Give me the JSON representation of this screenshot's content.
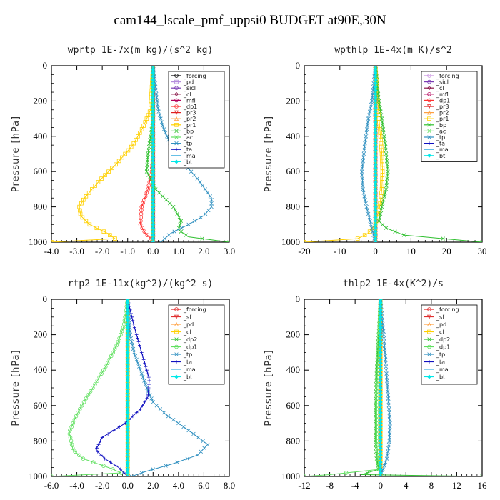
{
  "figure": {
    "title": "cam144_lscale_pmf_uppsi0  BUDGET at90E,30N"
  },
  "chart_data": [
    {
      "type": "line",
      "title": "wprtp  1E-7x(m kg)/(s^2 kg)",
      "ylabel": "Pressure [hPa]",
      "xlim": [
        -4.0,
        3.0
      ],
      "ylim": [
        1000,
        0
      ],
      "xticks": [
        -4.0,
        -3.0,
        -2.0,
        -1.0,
        0.0,
        1.0,
        2.0,
        3.0
      ],
      "xtick_labels": [
        "-4.0",
        "-3.0",
        "-2.0",
        "-1.0",
        "0.0",
        "1.0",
        "2.0",
        "3.0"
      ],
      "yticks": [
        0,
        200,
        400,
        600,
        800,
        1000
      ],
      "legend_position": "top-right",
      "series": [
        {
          "name": "_forcing",
          "color": "#000000",
          "marker": "o",
          "p": [
            0,
            200,
            400,
            600,
            800,
            1000
          ],
          "x": [
            0,
            0,
            0,
            0,
            0,
            0
          ]
        },
        {
          "name": "_pd",
          "color": "#b48cdc",
          "marker": "s",
          "p": [
            0,
            1000
          ],
          "x": [
            0,
            0
          ]
        },
        {
          "name": "_sicl",
          "color": "#7a3cb4",
          "marker": "o",
          "p": [
            0,
            1000
          ],
          "x": [
            0,
            0
          ]
        },
        {
          "name": "_cl",
          "color": "#8b1a4a",
          "marker": "d",
          "p": [
            0,
            1000
          ],
          "x": [
            0,
            0
          ]
        },
        {
          "name": "_mfl",
          "color": "#b4005a",
          "marker": "o",
          "p": [
            0,
            1000
          ],
          "x": [
            0,
            0
          ]
        },
        {
          "name": "_dp1",
          "color": "#ff3030",
          "marker": "o",
          "p": [
            0,
            300,
            500,
            600,
            700,
            800,
            900,
            950,
            990,
            1000
          ],
          "x": [
            0,
            0,
            0,
            -0.05,
            -0.2,
            -0.45,
            -0.5,
            -0.3,
            0.0,
            0
          ]
        },
        {
          "name": "_pr3",
          "color": "#e02020",
          "marker": "v",
          "p": [
            0,
            1000
          ],
          "x": [
            0,
            0
          ]
        },
        {
          "name": "_pr2",
          "color": "#ffa040",
          "marker": "^",
          "p": [
            0,
            1000
          ],
          "x": [
            0,
            0
          ]
        },
        {
          "name": "_pr1",
          "color": "#ffd000",
          "marker": "s",
          "p": [
            0,
            250,
            350,
            450,
            550,
            650,
            750,
            800,
            850,
            900,
            950,
            980,
            1000
          ],
          "x": [
            0,
            -0.1,
            -0.4,
            -0.8,
            -1.4,
            -2.1,
            -2.7,
            -2.9,
            -2.85,
            -2.5,
            -1.8,
            -1.5,
            -4.0
          ]
        },
        {
          "name": "_bp",
          "color": "#30c030",
          "marker": "x",
          "p": [
            0,
            300,
            500,
            600,
            700,
            800,
            880,
            930,
            970,
            1000
          ],
          "x": [
            0,
            0,
            -0.2,
            -0.25,
            0.1,
            0.8,
            1.1,
            1.0,
            1.4,
            3.0
          ]
        },
        {
          "name": "_ac",
          "color": "#60e060",
          "marker": "x",
          "p": [
            0,
            1000
          ],
          "x": [
            0,
            0
          ]
        },
        {
          "name": "_tp",
          "color": "#3090c0",
          "marker": "x",
          "p": [
            0,
            250,
            350,
            450,
            550,
            650,
            750,
            800,
            850,
            900,
            950,
            1000
          ],
          "x": [
            0,
            0.2,
            0.4,
            0.7,
            1.2,
            1.8,
            2.3,
            2.3,
            2.0,
            1.4,
            0.7,
            0.3
          ]
        },
        {
          "name": "_ta",
          "color": "#1010c0",
          "marker": "+",
          "p": [
            0,
            1000
          ],
          "x": [
            0,
            0
          ]
        },
        {
          "name": "_ma",
          "color": "#40b0e0",
          "marker": "-",
          "p": [
            0,
            1000
          ],
          "x": [
            0,
            0
          ]
        },
        {
          "name": "_bt",
          "color": "#00e8e8",
          "marker": "D",
          "p": [
            0,
            1000
          ],
          "x": [
            0,
            0
          ]
        }
      ]
    },
    {
      "type": "line",
      "title": "wpthlp  1E-4x(m K)/s^2",
      "ylabel": "Pressure [hPa]",
      "xlim": [
        -20,
        30
      ],
      "ylim": [
        1000,
        0
      ],
      "xticks": [
        -20,
        -10,
        0,
        10,
        20,
        30
      ],
      "xtick_labels": [
        "-20",
        "-10",
        "0",
        "10",
        "20",
        "30"
      ],
      "yticks": [
        0,
        200,
        400,
        600,
        800,
        1000
      ],
      "legend_position": "top-right",
      "series": [
        {
          "name": "_forcing",
          "color": "#c890e0",
          "marker": "o",
          "p": [
            0,
            1000
          ],
          "x": [
            0,
            0
          ]
        },
        {
          "name": "_sicl",
          "color": "#7a3cb4",
          "marker": "o",
          "p": [
            0,
            1000
          ],
          "x": [
            0,
            0
          ]
        },
        {
          "name": "_cl",
          "color": "#8b1a4a",
          "marker": "d",
          "p": [
            0,
            1000
          ],
          "x": [
            0,
            0
          ]
        },
        {
          "name": "_mfl",
          "color": "#b4005a",
          "marker": "o",
          "p": [
            0,
            1000
          ],
          "x": [
            0,
            0
          ]
        },
        {
          "name": "_dp1",
          "color": "#ff3030",
          "marker": "o",
          "p": [
            0,
            1000
          ],
          "x": [
            0,
            0
          ]
        },
        {
          "name": "_pr3",
          "color": "#e02020",
          "marker": "v",
          "p": [
            0,
            600,
            800,
            900,
            1000
          ],
          "x": [
            0,
            0,
            0,
            0,
            0
          ]
        },
        {
          "name": "_pr2",
          "color": "#ffa040",
          "marker": "^",
          "p": [
            0,
            1000
          ],
          "x": [
            0,
            0
          ]
        },
        {
          "name": "_pr1",
          "color": "#ffd000",
          "marker": "s",
          "p": [
            0,
            300,
            500,
            600,
            700,
            800,
            850,
            900,
            950,
            980,
            1000
          ],
          "x": [
            0,
            1.0,
            1.8,
            2.0,
            1.8,
            1.2,
            0.6,
            0.0,
            -2.0,
            -5.0,
            -20.0
          ]
        },
        {
          "name": "_bp",
          "color": "#30c030",
          "marker": "x",
          "p": [
            0,
            200,
            300,
            450,
            600,
            700,
            800,
            880,
            920,
            960,
            1000
          ],
          "x": [
            0,
            1.0,
            1.8,
            2.8,
            3.5,
            3.0,
            1.8,
            1.0,
            3.0,
            8.0,
            30.0
          ]
        },
        {
          "name": "_ac",
          "color": "#60e060",
          "marker": "x",
          "p": [
            0,
            1000
          ],
          "x": [
            0,
            0
          ]
        },
        {
          "name": "_tp",
          "color": "#3090c0",
          "marker": "x",
          "p": [
            0,
            200,
            300,
            450,
            600,
            700,
            800,
            880,
            940,
            980,
            1000
          ],
          "x": [
            0,
            -1.0,
            -2.0,
            -3.0,
            -3.8,
            -3.5,
            -2.5,
            -1.5,
            -0.8,
            -0.3,
            0
          ]
        },
        {
          "name": "_ta",
          "color": "#1010c0",
          "marker": "+",
          "p": [
            0,
            1000
          ],
          "x": [
            0,
            0
          ]
        },
        {
          "name": "_ma",
          "color": "#40b0e0",
          "marker": "-",
          "p": [
            0,
            1000
          ],
          "x": [
            0,
            0
          ]
        },
        {
          "name": "_bt",
          "color": "#00e8e8",
          "marker": "D",
          "p": [
            0,
            1000
          ],
          "x": [
            0,
            0
          ]
        }
      ]
    },
    {
      "type": "line",
      "title": "rtp2  1E-11x(kg^2)/(kg^2 s)",
      "ylabel": "Pressure [hPa]",
      "xlim": [
        -6.0,
        8.0
      ],
      "ylim": [
        1000,
        0
      ],
      "xticks": [
        -6.0,
        -4.0,
        -2.0,
        0.0,
        2.0,
        4.0,
        6.0,
        8.0
      ],
      "xtick_labels": [
        "-6.0",
        "-4.0",
        "-2.0",
        "0.0",
        "2.0",
        "4.0",
        "6.0",
        "8.0"
      ],
      "yticks": [
        0,
        200,
        400,
        600,
        800,
        1000
      ],
      "legend_position": "top-right",
      "series": [
        {
          "name": "_forcing",
          "color": "#e02020",
          "marker": "o",
          "p": [
            0,
            1000
          ],
          "x": [
            0,
            0
          ]
        },
        {
          "name": "_sf",
          "color": "#e03030",
          "marker": "v",
          "p": [
            0,
            1000
          ],
          "x": [
            0,
            0
          ]
        },
        {
          "name": "_pd",
          "color": "#ffa040",
          "marker": "^",
          "p": [
            0,
            1000
          ],
          "x": [
            0,
            0
          ]
        },
        {
          "name": "_cl",
          "color": "#ffd000",
          "marker": "s",
          "p": [
            0,
            1000
          ],
          "x": [
            0,
            0
          ]
        },
        {
          "name": "_dp2",
          "color": "#30c030",
          "marker": "x",
          "p": [
            0,
            1000
          ],
          "x": [
            0,
            0
          ]
        },
        {
          "name": "_dp1",
          "color": "#60e060",
          "marker": "o",
          "p": [
            0,
            150,
            250,
            350,
            450,
            550,
            650,
            750,
            850,
            900,
            950,
            980,
            1000
          ],
          "x": [
            0,
            -0.3,
            -0.8,
            -1.5,
            -2.3,
            -3.2,
            -4.0,
            -4.6,
            -4.3,
            -3.5,
            -1.5,
            -0.5,
            -6.0
          ]
        },
        {
          "name": "_tp",
          "color": "#3090c0",
          "marker": "x",
          "p": [
            0,
            200,
            300,
            400,
            500,
            580,
            650,
            750,
            820,
            880,
            930,
            970,
            1000
          ],
          "x": [
            0,
            0.2,
            0.5,
            1.0,
            1.5,
            2.0,
            3.0,
            5.0,
            6.3,
            5.5,
            3.5,
            1.5,
            0.3
          ]
        },
        {
          "name": "_ta",
          "color": "#1010c0",
          "marker": "+",
          "p": [
            0,
            150,
            250,
            350,
            450,
            550,
            620,
            700,
            780,
            850,
            900,
            950,
            1000
          ],
          "x": [
            0,
            0.5,
            0.9,
            1.3,
            1.7,
            1.6,
            1.0,
            -0.2,
            -2.0,
            -2.5,
            -1.8,
            -0.7,
            0
          ]
        },
        {
          "name": "_ma",
          "color": "#40b0e0",
          "marker": "-",
          "p": [
            0,
            1000
          ],
          "x": [
            0,
            0
          ]
        },
        {
          "name": "_bt",
          "color": "#00e8e8",
          "marker": "D",
          "p": [
            0,
            1000
          ],
          "x": [
            0,
            0
          ]
        }
      ]
    },
    {
      "type": "line",
      "title": "thlp2  1E-4x(K^2)/s",
      "ylabel": "Pressure [hPa]",
      "xlim": [
        -12,
        16
      ],
      "ylim": [
        1000,
        0
      ],
      "xticks": [
        -12,
        -8,
        -4,
        0,
        4,
        8,
        12,
        16
      ],
      "xtick_labels": [
        "-12",
        "-8",
        "-4",
        "0",
        "4",
        "8",
        "12",
        "16"
      ],
      "yticks": [
        0,
        200,
        400,
        600,
        800,
        1000
      ],
      "legend_position": "top-right",
      "series": [
        {
          "name": "_forcing",
          "color": "#e02020",
          "marker": "o",
          "p": [
            0,
            1000
          ],
          "x": [
            0,
            0
          ]
        },
        {
          "name": "_sf",
          "color": "#e03030",
          "marker": "v",
          "p": [
            0,
            1000
          ],
          "x": [
            0,
            0
          ]
        },
        {
          "name": "_pd",
          "color": "#ffa040",
          "marker": "^",
          "p": [
            0,
            1000
          ],
          "x": [
            0,
            0
          ]
        },
        {
          "name": "_cl",
          "color": "#ffd000",
          "marker": "s",
          "p": [
            0,
            1000
          ],
          "x": [
            0,
            0
          ]
        },
        {
          "name": "_dp2",
          "color": "#30c030",
          "marker": "x",
          "p": [
            0,
            200,
            400,
            600,
            800,
            900,
            960,
            990,
            1000
          ],
          "x": [
            0,
            -0.3,
            -0.6,
            -0.8,
            -0.8,
            -0.6,
            -0.3,
            -3.0,
            16.0
          ]
        },
        {
          "name": "_dp1",
          "color": "#60e060",
          "marker": "o",
          "p": [
            0,
            200,
            400,
            600,
            800,
            900,
            960,
            990,
            1000
          ],
          "x": [
            0,
            -0.2,
            -0.5,
            -0.6,
            -0.6,
            -0.4,
            -0.2,
            -8.0,
            -12.0
          ]
        },
        {
          "name": "_tp",
          "color": "#3090c0",
          "marker": "x",
          "p": [
            0,
            200,
            400,
            600,
            700,
            800,
            900,
            960,
            1000
          ],
          "x": [
            0,
            0.5,
            0.9,
            1.3,
            1.5,
            1.4,
            1.0,
            0.4,
            0
          ]
        },
        {
          "name": "_ta",
          "color": "#1010c0",
          "marker": "+",
          "p": [
            0,
            1000
          ],
          "x": [
            0,
            0
          ]
        },
        {
          "name": "_ma",
          "color": "#40b0e0",
          "marker": "-",
          "p": [
            0,
            1000
          ],
          "x": [
            0,
            0
          ]
        },
        {
          "name": "_bt",
          "color": "#00e8e8",
          "marker": "D",
          "p": [
            0,
            1000
          ],
          "x": [
            0,
            0
          ]
        }
      ]
    }
  ]
}
